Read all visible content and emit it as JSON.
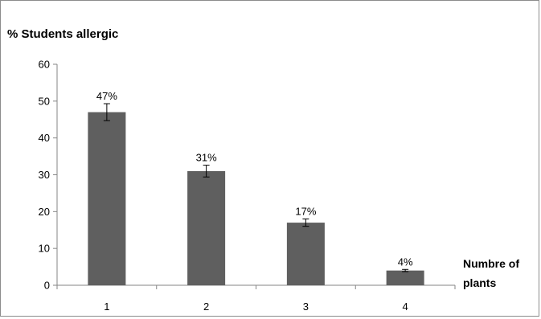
{
  "chart_data": {
    "type": "bar",
    "title": "% Students allergic",
    "xlabel": "Numbre of plants",
    "xlabel_lines": [
      "Numbre of",
      "plants"
    ],
    "ylabel": "",
    "categories": [
      "1",
      "2",
      "3",
      "4"
    ],
    "values": [
      47,
      31,
      17,
      4
    ],
    "errors": [
      2.3,
      1.6,
      1.0,
      0.3
    ],
    "data_labels": [
      "47%",
      "31%",
      "17%",
      "4%"
    ],
    "ylim": [
      0,
      60
    ],
    "yticks": [
      0,
      10,
      20,
      30,
      40,
      50,
      60
    ],
    "grid": false,
    "legend": "none",
    "bar_color": "#5f5f5f"
  }
}
